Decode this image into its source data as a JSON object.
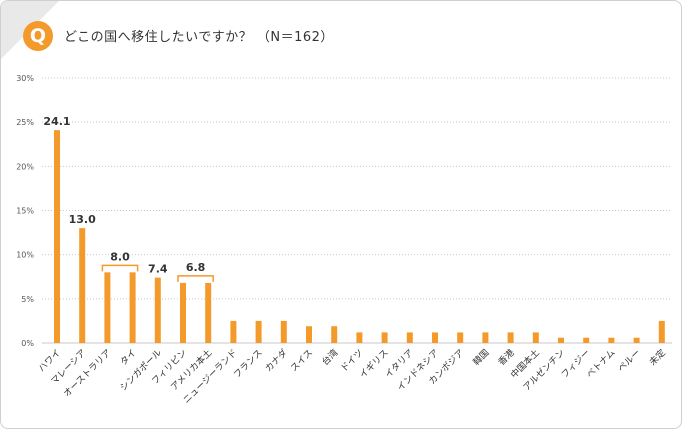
{
  "question": {
    "badge": "Q",
    "title": "どこの国へ移住したいですか？ （N＝162）"
  },
  "colors": {
    "bar": "#f39a2b",
    "grid": "#c8c8c8",
    "axis_text": "#555555",
    "label_text": "#333333"
  },
  "chart_data": {
    "type": "bar",
    "title": "どこの国へ移住したいですか？ （N＝162）",
    "xlabel": "",
    "ylabel": "",
    "ylim": [
      0,
      30
    ],
    "yticks": [
      "0%",
      "5%",
      "10%",
      "15%",
      "20%",
      "25%",
      "30%"
    ],
    "grid": true,
    "categories": [
      "ハワイ",
      "マレーシア",
      "オーストラリア",
      "タイ",
      "シンガポール",
      "フィリピン",
      "アメリカ本土",
      "ニュージーランド",
      "フランス",
      "カナダ",
      "スイス",
      "台湾",
      "ドイツ",
      "イギリス",
      "イタリア",
      "インドネシア",
      "カンボジア",
      "韓国",
      "香港",
      "中国本土",
      "アルゼンチン",
      "フィジー",
      "ベトナム",
      "ペルー",
      "未定"
    ],
    "values": [
      24.1,
      13.0,
      8.0,
      8.0,
      7.4,
      6.8,
      6.8,
      2.5,
      2.5,
      2.5,
      1.9,
      1.9,
      1.2,
      1.2,
      1.2,
      1.2,
      1.2,
      1.2,
      1.2,
      1.2,
      0.6,
      0.6,
      0.6,
      0.6,
      2.5
    ],
    "annotations": [
      {
        "text": "24.1",
        "from": 0,
        "to": 0,
        "bracket": false,
        "value": 24.1
      },
      {
        "text": "13.0",
        "from": 1,
        "to": 1,
        "bracket": false,
        "value": 13.0
      },
      {
        "text": "8.0",
        "from": 2,
        "to": 3,
        "bracket": true,
        "value": 8.0
      },
      {
        "text": "7.4",
        "from": 4,
        "to": 4,
        "bracket": false,
        "value": 7.4
      },
      {
        "text": "6.8",
        "from": 5,
        "to": 6,
        "bracket": true,
        "value": 6.8
      }
    ]
  }
}
